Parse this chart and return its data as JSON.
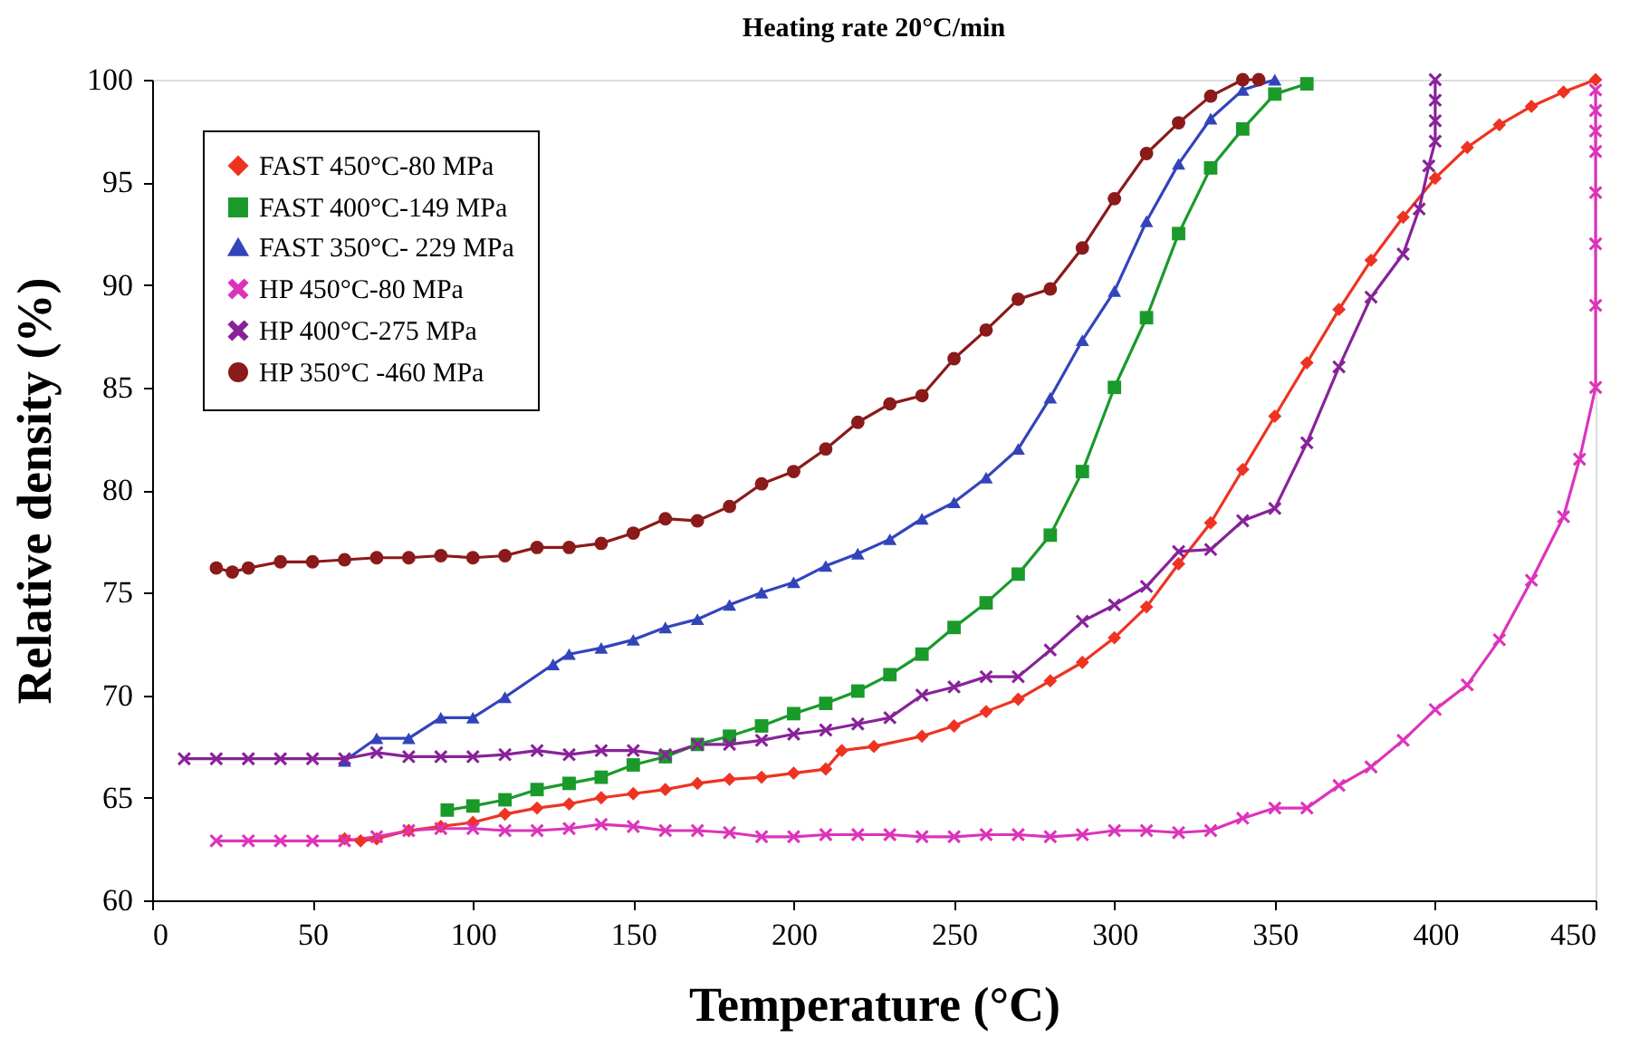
{
  "chart_data": {
    "type": "line",
    "title": "Heating rate 20°C/min",
    "xlabel": "Temperature (°C)",
    "ylabel": "Relative density (%)",
    "xlim": [
      0,
      450
    ],
    "xticks": [
      0,
      50,
      100,
      150,
      200,
      250,
      300,
      350,
      400,
      450
    ],
    "ylim": [
      60,
      100
    ],
    "yticks": [
      60,
      65,
      70,
      75,
      80,
      85,
      90,
      95,
      100
    ],
    "grid": false,
    "legend": "top left",
    "line_style": "solid",
    "series": [
      {
        "name": "FAST 450°C-80 MPa",
        "color": "#ee3322",
        "marker": "diamond",
        "x": [
          60,
          65,
          70,
          80,
          90,
          100,
          110,
          120,
          130,
          140,
          150,
          160,
          170,
          180,
          190,
          200,
          210,
          215,
          225,
          240,
          250,
          260,
          270,
          280,
          290,
          300,
          310,
          320,
          330,
          340,
          350,
          360,
          370,
          380,
          390,
          400,
          410,
          420,
          430,
          440,
          450
        ],
        "values": [
          63,
          62.9,
          63,
          63.4,
          63.6,
          63.8,
          64.2,
          64.5,
          64.7,
          65,
          65.2,
          65.4,
          65.7,
          65.9,
          66,
          66.2,
          66.4,
          67.3,
          67.5,
          68,
          68.5,
          69.2,
          69.8,
          70.7,
          71.6,
          72.8,
          74.3,
          76.4,
          78.4,
          81,
          83.6,
          86.2,
          88.8,
          91.2,
          93.3,
          95.2,
          96.7,
          97.8,
          98.7,
          99.4,
          100
        ]
      },
      {
        "name": "FAST 400°C-149 MPa",
        "color": "#1a9a2a",
        "marker": "square",
        "x": [
          92,
          100,
          110,
          120,
          130,
          140,
          150,
          160,
          170,
          180,
          190,
          200,
          210,
          220,
          230,
          240,
          250,
          260,
          270,
          280,
          290,
          300,
          310,
          320,
          330,
          340,
          350,
          360
        ],
        "values": [
          64.4,
          64.6,
          64.9,
          65.4,
          65.7,
          66,
          66.6,
          67,
          67.6,
          68,
          68.5,
          69.1,
          69.6,
          70.2,
          71,
          72,
          73.3,
          74.5,
          75.9,
          77.8,
          80.9,
          85,
          88.4,
          92.5,
          95.7,
          97.6,
          99.3,
          99.8
        ]
      },
      {
        "name": "FAST 350°C- 229 MPa",
        "color": "#3344bb",
        "marker": "triangle",
        "x": [
          60,
          70,
          80,
          90,
          100,
          110,
          125,
          130,
          140,
          150,
          160,
          170,
          180,
          190,
          200,
          210,
          220,
          230,
          240,
          250,
          260,
          270,
          280,
          290,
          300,
          310,
          320,
          330,
          340,
          350
        ],
        "values": [
          66.8,
          67.9,
          67.9,
          68.9,
          68.9,
          69.9,
          71.5,
          72,
          72.3,
          72.7,
          73.3,
          73.7,
          74.4,
          75,
          75.5,
          76.3,
          76.9,
          77.6,
          78.6,
          79.4,
          80.6,
          82,
          84.5,
          87.3,
          89.7,
          93.1,
          95.9,
          98.1,
          99.5,
          100
        ]
      },
      {
        "name": "HP 450°C-80 MPa",
        "color": "#dd33bb",
        "marker": "cross",
        "x": [
          20,
          30,
          40,
          50,
          60,
          70,
          80,
          90,
          100,
          110,
          120,
          130,
          140,
          150,
          160,
          170,
          180,
          190,
          200,
          210,
          220,
          230,
          240,
          250,
          260,
          270,
          280,
          290,
          300,
          310,
          320,
          330,
          340,
          350,
          360,
          370,
          380,
          390,
          400,
          410,
          420,
          430,
          440,
          445,
          450,
          450,
          450,
          450,
          450,
          450,
          450,
          450
        ],
        "values": [
          62.9,
          62.9,
          62.9,
          62.9,
          62.9,
          63.1,
          63.4,
          63.5,
          63.5,
          63.4,
          63.4,
          63.5,
          63.7,
          63.6,
          63.4,
          63.4,
          63.3,
          63.1,
          63.1,
          63.2,
          63.2,
          63.2,
          63.1,
          63.1,
          63.2,
          63.2,
          63.1,
          63.2,
          63.4,
          63.4,
          63.3,
          63.4,
          64,
          64.5,
          64.5,
          65.6,
          66.5,
          67.8,
          69.3,
          70.5,
          72.7,
          75.6,
          78.7,
          81.5,
          85,
          89,
          92,
          94.5,
          96.5,
          97.5,
          98.5,
          99.5
        ]
      },
      {
        "name": "HP 400°C-275 MPa",
        "color": "#882299",
        "marker": "cross",
        "x": [
          10,
          20,
          30,
          40,
          50,
          60,
          70,
          80,
          90,
          100,
          110,
          120,
          130,
          140,
          150,
          160,
          170,
          180,
          190,
          200,
          210,
          220,
          230,
          240,
          250,
          260,
          270,
          280,
          290,
          300,
          310,
          320,
          330,
          340,
          350,
          360,
          370,
          380,
          390,
          395,
          398,
          400,
          400,
          400,
          400
        ],
        "values": [
          66.9,
          66.9,
          66.9,
          66.9,
          66.9,
          66.9,
          67.2,
          67,
          67,
          67,
          67.1,
          67.3,
          67.1,
          67.3,
          67.3,
          67.1,
          67.6,
          67.6,
          67.8,
          68.1,
          68.3,
          68.6,
          68.9,
          70,
          70.4,
          70.9,
          70.9,
          72.2,
          73.6,
          74.4,
          75.3,
          77,
          77.1,
          78.5,
          79.1,
          82.3,
          86,
          89.4,
          91.5,
          93.7,
          95.8,
          97,
          98,
          99,
          100
        ]
      },
      {
        "name": "HP 350°C -460 MPa",
        "color": "#8b1a1a",
        "marker": "circle",
        "x": [
          20,
          25,
          30,
          40,
          50,
          60,
          70,
          80,
          90,
          100,
          110,
          120,
          130,
          140,
          150,
          160,
          170,
          180,
          190,
          200,
          210,
          220,
          230,
          240,
          250,
          260,
          270,
          280,
          290,
          300,
          310,
          320,
          330,
          340,
          345
        ],
        "values": [
          76.2,
          76,
          76.2,
          76.5,
          76.5,
          76.6,
          76.7,
          76.7,
          76.8,
          76.7,
          76.8,
          77.2,
          77.2,
          77.4,
          77.9,
          78.6,
          78.5,
          79.2,
          80.3,
          80.9,
          82,
          83.3,
          84.2,
          84.6,
          86.4,
          87.8,
          89.3,
          89.8,
          91.8,
          94.2,
          96.4,
          97.9,
          99.2,
          100,
          100
        ]
      }
    ]
  }
}
